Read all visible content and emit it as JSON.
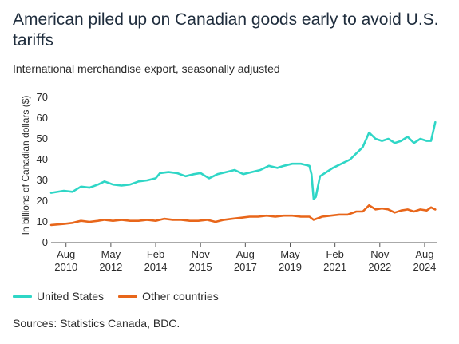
{
  "title": "American piled up on Canadian goods early to avoid U.S. tariffs",
  "subtitle": "International merchandise export, seasonally adjusted",
  "source": "Sources: Statistics Canada, BDC.",
  "colors": {
    "us": "#2fd6c6",
    "other": "#e8661a",
    "axis": "#555555",
    "text": "#2a2a2a"
  },
  "chart_data": {
    "type": "line",
    "title": "American piled up on Canadian goods early to avoid U.S. tariffs",
    "subtitle": "International merchandise export, seasonally adjusted",
    "ylabel": "In billions of Canadian dollars ($)",
    "xlabel": "",
    "ylim": [
      0,
      70
    ],
    "yticks": [
      0,
      10,
      20,
      30,
      40,
      50,
      60,
      70
    ],
    "xlim": [
      "2010-01",
      "2025-02"
    ],
    "xticks": [
      {
        "month": "Aug",
        "year": "2010",
        "date": "2010-08"
      },
      {
        "month": "May",
        "year": "2012",
        "date": "2012-05"
      },
      {
        "month": "Feb",
        "year": "2014",
        "date": "2014-02"
      },
      {
        "month": "Nov",
        "year": "2015",
        "date": "2015-11"
      },
      {
        "month": "Aug",
        "year": "2017",
        "date": "2017-08"
      },
      {
        "month": "May",
        "year": "2019",
        "date": "2019-05"
      },
      {
        "month": "Feb",
        "year": "2021",
        "date": "2021-02"
      },
      {
        "month": "Nov",
        "year": "2022",
        "date": "2022-11"
      },
      {
        "month": "Aug",
        "year": "2024",
        "date": "2024-08"
      }
    ],
    "grid": false,
    "legend_position": "bottom-left",
    "series": [
      {
        "name": "United States",
        "color": "#2fd6c6",
        "points": [
          [
            "2010-01",
            24
          ],
          [
            "2010-07",
            25
          ],
          [
            "2010-11",
            24.5
          ],
          [
            "2011-03",
            27
          ],
          [
            "2011-07",
            26.5
          ],
          [
            "2011-11",
            28
          ],
          [
            "2012-02",
            29.5
          ],
          [
            "2012-06",
            28
          ],
          [
            "2012-10",
            27.5
          ],
          [
            "2013-02",
            28
          ],
          [
            "2013-06",
            29.5
          ],
          [
            "2013-10",
            30
          ],
          [
            "2014-02",
            31
          ],
          [
            "2014-04",
            33.5
          ],
          [
            "2014-08",
            34
          ],
          [
            "2014-12",
            33.5
          ],
          [
            "2015-04",
            32
          ],
          [
            "2015-08",
            33
          ],
          [
            "2015-11",
            33.5
          ],
          [
            "2016-03",
            31
          ],
          [
            "2016-07",
            33
          ],
          [
            "2016-11",
            34
          ],
          [
            "2017-03",
            35
          ],
          [
            "2017-07",
            33
          ],
          [
            "2017-11",
            34
          ],
          [
            "2018-03",
            35
          ],
          [
            "2018-07",
            37
          ],
          [
            "2018-11",
            36
          ],
          [
            "2019-02",
            37
          ],
          [
            "2019-06",
            38
          ],
          [
            "2019-10",
            38
          ],
          [
            "2020-02",
            37
          ],
          [
            "2020-03",
            33
          ],
          [
            "2020-04",
            21
          ],
          [
            "2020-05",
            22
          ],
          [
            "2020-07",
            32
          ],
          [
            "2020-10",
            34
          ],
          [
            "2021-01",
            36
          ],
          [
            "2021-05",
            38
          ],
          [
            "2021-09",
            40
          ],
          [
            "2021-12",
            43
          ],
          [
            "2022-03",
            46
          ],
          [
            "2022-06",
            53
          ],
          [
            "2022-09",
            50
          ],
          [
            "2022-12",
            49
          ],
          [
            "2023-03",
            50
          ],
          [
            "2023-06",
            48
          ],
          [
            "2023-09",
            49
          ],
          [
            "2023-12",
            51
          ],
          [
            "2024-03",
            48
          ],
          [
            "2024-06",
            50
          ],
          [
            "2024-09",
            49
          ],
          [
            "2024-11",
            49
          ],
          [
            "2025-01",
            58
          ]
        ]
      },
      {
        "name": "Other countries",
        "color": "#e8661a",
        "points": [
          [
            "2010-01",
            8.5
          ],
          [
            "2010-07",
            9
          ],
          [
            "2010-11",
            9.5
          ],
          [
            "2011-03",
            10.5
          ],
          [
            "2011-07",
            10
          ],
          [
            "2011-11",
            10.5
          ],
          [
            "2012-02",
            11
          ],
          [
            "2012-06",
            10.5
          ],
          [
            "2012-10",
            11
          ],
          [
            "2013-02",
            10.5
          ],
          [
            "2013-06",
            10.5
          ],
          [
            "2013-10",
            11
          ],
          [
            "2014-02",
            10.5
          ],
          [
            "2014-06",
            11.5
          ],
          [
            "2014-10",
            11
          ],
          [
            "2015-02",
            11
          ],
          [
            "2015-06",
            10.5
          ],
          [
            "2015-10",
            10.5
          ],
          [
            "2016-02",
            11
          ],
          [
            "2016-06",
            10
          ],
          [
            "2016-10",
            11
          ],
          [
            "2017-02",
            11.5
          ],
          [
            "2017-06",
            12
          ],
          [
            "2017-10",
            12.5
          ],
          [
            "2018-02",
            12.5
          ],
          [
            "2018-06",
            13
          ],
          [
            "2018-10",
            12.5
          ],
          [
            "2019-02",
            13
          ],
          [
            "2019-06",
            13
          ],
          [
            "2019-10",
            12.5
          ],
          [
            "2020-02",
            12.5
          ],
          [
            "2020-04",
            11
          ],
          [
            "2020-08",
            12.5
          ],
          [
            "2020-12",
            13
          ],
          [
            "2021-04",
            13.5
          ],
          [
            "2021-08",
            13.5
          ],
          [
            "2021-12",
            15
          ],
          [
            "2022-03",
            15
          ],
          [
            "2022-06",
            18
          ],
          [
            "2022-09",
            16
          ],
          [
            "2022-12",
            16.5
          ],
          [
            "2023-03",
            16
          ],
          [
            "2023-06",
            14.5
          ],
          [
            "2023-09",
            15.5
          ],
          [
            "2023-12",
            16
          ],
          [
            "2024-03",
            15
          ],
          [
            "2024-06",
            16
          ],
          [
            "2024-09",
            15.5
          ],
          [
            "2024-11",
            17
          ],
          [
            "2025-01",
            16
          ]
        ]
      }
    ]
  }
}
